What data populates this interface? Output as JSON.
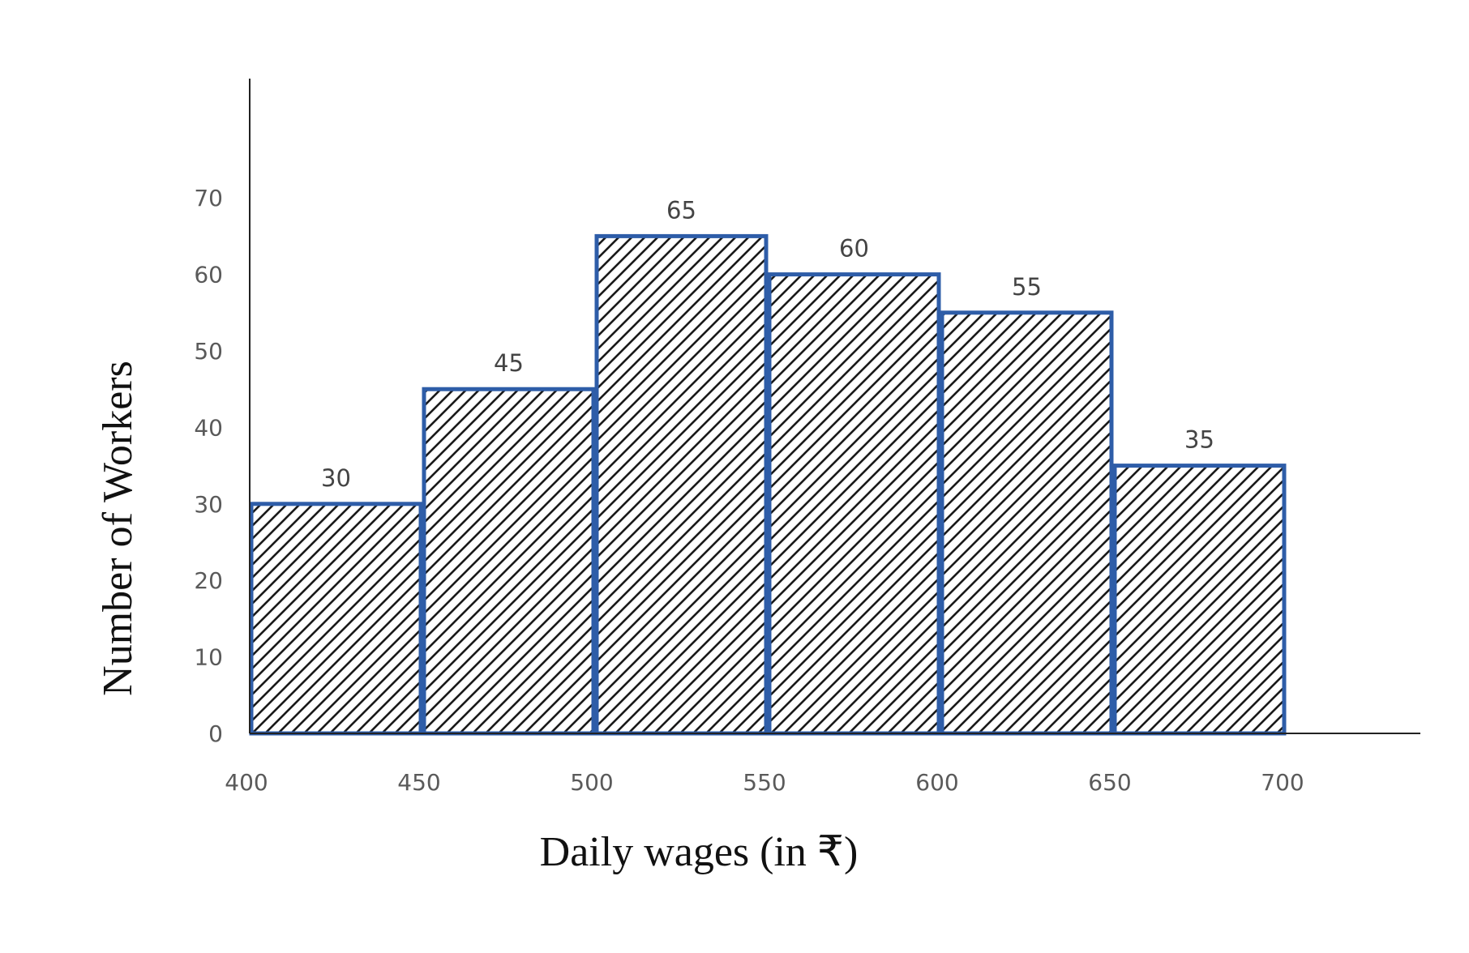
{
  "chart_data": {
    "type": "bar",
    "title": "",
    "xlabel": "Daily wages (in ₹)",
    "ylabel": "Number of Workers",
    "x_ticks": [
      "400",
      "450",
      "500",
      "550",
      "600",
      "650",
      "700"
    ],
    "y_ticks": [
      "0",
      "10",
      "20",
      "30",
      "40",
      "50",
      "60",
      "70"
    ],
    "categories": [
      "400-450",
      "450-500",
      "500-550",
      "550-600",
      "600-650",
      "650-700"
    ],
    "values": [
      30,
      45,
      65,
      60,
      55,
      35
    ],
    "data_labels": [
      "30",
      "45",
      "65",
      "60",
      "55",
      "35"
    ],
    "ylim": [
      0,
      70
    ],
    "xlim": [
      400,
      700
    ],
    "grid": false,
    "legend": "none",
    "bar_color": "#2e5da8",
    "bar_fill_pattern": "diagonal-hatch"
  }
}
